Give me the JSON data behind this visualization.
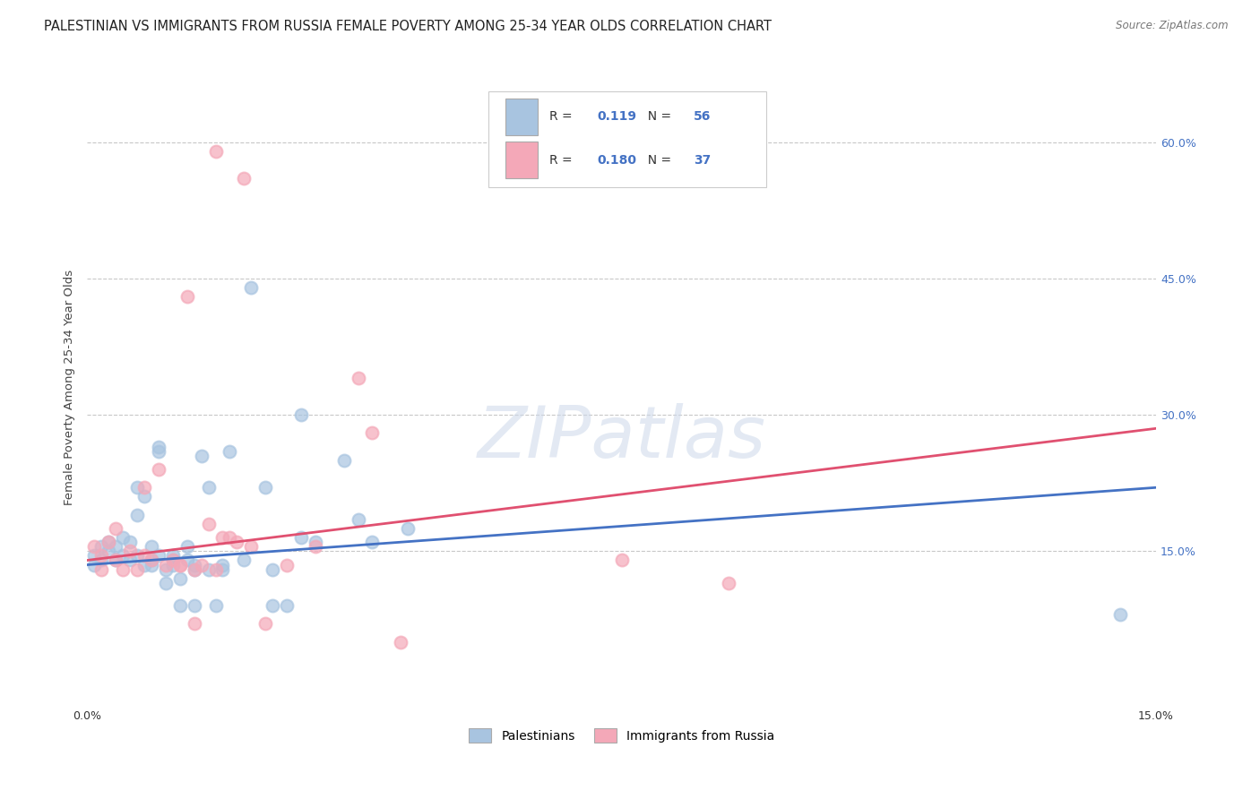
{
  "title": "PALESTINIAN VS IMMIGRANTS FROM RUSSIA FEMALE POVERTY AMONG 25-34 YEAR OLDS CORRELATION CHART",
  "source": "Source: ZipAtlas.com",
  "ylabel": "Female Poverty Among 25-34 Year Olds",
  "ytick_labels": [
    "15.0%",
    "30.0%",
    "45.0%",
    "60.0%"
  ],
  "ytick_values": [
    0.15,
    0.3,
    0.45,
    0.6
  ],
  "xlim": [
    0.0,
    0.15
  ],
  "ylim": [
    -0.02,
    0.68
  ],
  "legend_label1": "Palestinians",
  "legend_label2": "Immigrants from Russia",
  "R1": "0.119",
  "N1": "56",
  "R2": "0.180",
  "N2": "37",
  "blue_color": "#a8c4e0",
  "pink_color": "#f4a8b8",
  "blue_line_color": "#4472c4",
  "pink_line_color": "#e05070",
  "blue_scatter": [
    [
      0.001,
      0.135
    ],
    [
      0.001,
      0.145
    ],
    [
      0.002,
      0.14
    ],
    [
      0.002,
      0.155
    ],
    [
      0.003,
      0.15
    ],
    [
      0.003,
      0.16
    ],
    [
      0.004,
      0.14
    ],
    [
      0.004,
      0.155
    ],
    [
      0.005,
      0.145
    ],
    [
      0.005,
      0.165
    ],
    [
      0.006,
      0.14
    ],
    [
      0.006,
      0.16
    ],
    [
      0.007,
      0.145
    ],
    [
      0.007,
      0.22
    ],
    [
      0.007,
      0.19
    ],
    [
      0.008,
      0.21
    ],
    [
      0.008,
      0.135
    ],
    [
      0.009,
      0.14
    ],
    [
      0.009,
      0.155
    ],
    [
      0.009,
      0.135
    ],
    [
      0.01,
      0.145
    ],
    [
      0.01,
      0.26
    ],
    [
      0.01,
      0.265
    ],
    [
      0.011,
      0.13
    ],
    [
      0.011,
      0.115
    ],
    [
      0.012,
      0.145
    ],
    [
      0.012,
      0.14
    ],
    [
      0.012,
      0.135
    ],
    [
      0.013,
      0.12
    ],
    [
      0.013,
      0.09
    ],
    [
      0.014,
      0.155
    ],
    [
      0.014,
      0.14
    ],
    [
      0.015,
      0.09
    ],
    [
      0.015,
      0.13
    ],
    [
      0.015,
      0.135
    ],
    [
      0.016,
      0.255
    ],
    [
      0.017,
      0.22
    ],
    [
      0.017,
      0.13
    ],
    [
      0.018,
      0.09
    ],
    [
      0.019,
      0.13
    ],
    [
      0.019,
      0.135
    ],
    [
      0.02,
      0.26
    ],
    [
      0.022,
      0.14
    ],
    [
      0.023,
      0.44
    ],
    [
      0.025,
      0.22
    ],
    [
      0.026,
      0.13
    ],
    [
      0.026,
      0.09
    ],
    [
      0.028,
      0.09
    ],
    [
      0.03,
      0.3
    ],
    [
      0.03,
      0.165
    ],
    [
      0.032,
      0.16
    ],
    [
      0.036,
      0.25
    ],
    [
      0.038,
      0.185
    ],
    [
      0.04,
      0.16
    ],
    [
      0.045,
      0.175
    ],
    [
      0.145,
      0.08
    ]
  ],
  "pink_scatter": [
    [
      0.001,
      0.155
    ],
    [
      0.002,
      0.145
    ],
    [
      0.002,
      0.13
    ],
    [
      0.003,
      0.16
    ],
    [
      0.004,
      0.175
    ],
    [
      0.004,
      0.14
    ],
    [
      0.005,
      0.13
    ],
    [
      0.006,
      0.15
    ],
    [
      0.007,
      0.13
    ],
    [
      0.008,
      0.145
    ],
    [
      0.008,
      0.22
    ],
    [
      0.009,
      0.14
    ],
    [
      0.01,
      0.24
    ],
    [
      0.011,
      0.135
    ],
    [
      0.012,
      0.14
    ],
    [
      0.013,
      0.135
    ],
    [
      0.013,
      0.135
    ],
    [
      0.014,
      0.43
    ],
    [
      0.015,
      0.07
    ],
    [
      0.015,
      0.13
    ],
    [
      0.016,
      0.135
    ],
    [
      0.017,
      0.18
    ],
    [
      0.018,
      0.13
    ],
    [
      0.019,
      0.165
    ],
    [
      0.02,
      0.165
    ],
    [
      0.021,
      0.16
    ],
    [
      0.023,
      0.155
    ],
    [
      0.025,
      0.07
    ],
    [
      0.028,
      0.135
    ],
    [
      0.032,
      0.155
    ],
    [
      0.038,
      0.34
    ],
    [
      0.044,
      0.05
    ],
    [
      0.075,
      0.14
    ],
    [
      0.09,
      0.115
    ],
    [
      0.018,
      0.59
    ],
    [
      0.022,
      0.56
    ],
    [
      0.04,
      0.28
    ]
  ],
  "background_color": "#ffffff",
  "grid_color": "#c8c8c8",
  "right_label_color": "#4472c4",
  "title_fontsize": 10.5,
  "axis_label_fontsize": 9.5,
  "tick_fontsize": 9,
  "watermark": "ZIPatlas",
  "watermark_color": "#ccd8ea",
  "watermark_alpha": 0.55
}
